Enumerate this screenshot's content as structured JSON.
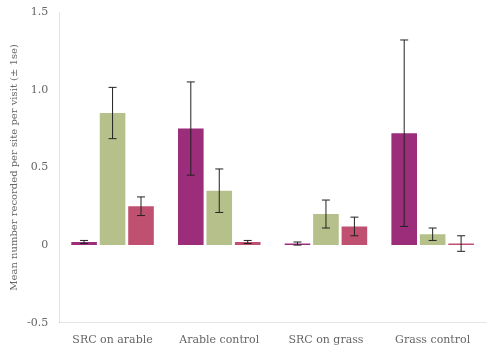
{
  "chart_data": {
    "type": "bar",
    "ylabel": "Mean number recorded per site per visit (± 1se)",
    "categories": [
      "SRC on arable",
      "Arable control",
      "SRC on grass",
      "Grass control"
    ],
    "series": [
      {
        "color": "#9b2d7a",
        "values": [
          0.02,
          0.75,
          0.01,
          0.72
        ],
        "errors": [
          0.01,
          0.3,
          0.01,
          0.6
        ]
      },
      {
        "color": "#b5c08a",
        "values": [
          0.85,
          0.35,
          0.2,
          0.07
        ],
        "errors": [
          0.165,
          0.14,
          0.09,
          0.04
        ]
      },
      {
        "color": "#c05070",
        "values": [
          0.25,
          0.02,
          0.12,
          0.01
        ],
        "errors": [
          0.06,
          0.01,
          0.06,
          0.05
        ]
      }
    ],
    "ylim": [
      -0.5,
      1.5
    ],
    "yticks": [
      -0.5,
      0,
      0.5,
      {
        "value": 1.0,
        "label": "1.0"
      },
      1.5
    ],
    "grid": false
  }
}
